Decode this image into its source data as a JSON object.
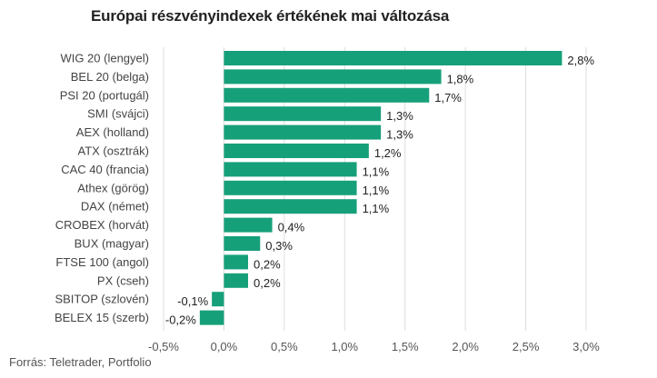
{
  "chart_data": {
    "type": "bar",
    "orientation": "horizontal",
    "title": "Európai részvényindexek értékének mai változása",
    "categories": [
      "WIG 20 (lengyel)",
      "BEL 20 (belga)",
      "PSI 20 (portugál)",
      "SMI (svájci)",
      "AEX (holland)",
      "ATX (osztrák)",
      "CAC 40 (francia)",
      "Athex (görög)",
      "DAX (német)",
      "CROBEX (horvát)",
      "BUX (magyar)",
      "FTSE 100 (angol)",
      "PX (cseh)",
      "SBITOP (szlovén)",
      "BELEX 15 (szerb)"
    ],
    "values": [
      2.8,
      1.8,
      1.7,
      1.3,
      1.3,
      1.2,
      1.1,
      1.1,
      1.1,
      0.4,
      0.3,
      0.2,
      0.2,
      -0.1,
      -0.2
    ],
    "value_labels": [
      "2,8%",
      "1,8%",
      "1,7%",
      "1,3%",
      "1,3%",
      "1,2%",
      "1,1%",
      "1,1%",
      "1,1%",
      "0,4%",
      "0,3%",
      "0,2%",
      "0,2%",
      "-0,1%",
      "-0,2%"
    ],
    "xlim": [
      -0.5,
      3.0
    ],
    "xticks": [
      -0.5,
      0,
      0.5,
      1.0,
      1.5,
      2.0,
      2.5,
      3.0
    ],
    "xtick_labels": [
      "-0,5%",
      "0,0%",
      "0,5%",
      "1,0%",
      "1,5%",
      "2,0%",
      "2,5%",
      "3,0%"
    ],
    "grid": true,
    "bar_color": "#16a07a",
    "grid_color": "#dddddd"
  },
  "source": "Forrás: Teletrader, Portfolio"
}
